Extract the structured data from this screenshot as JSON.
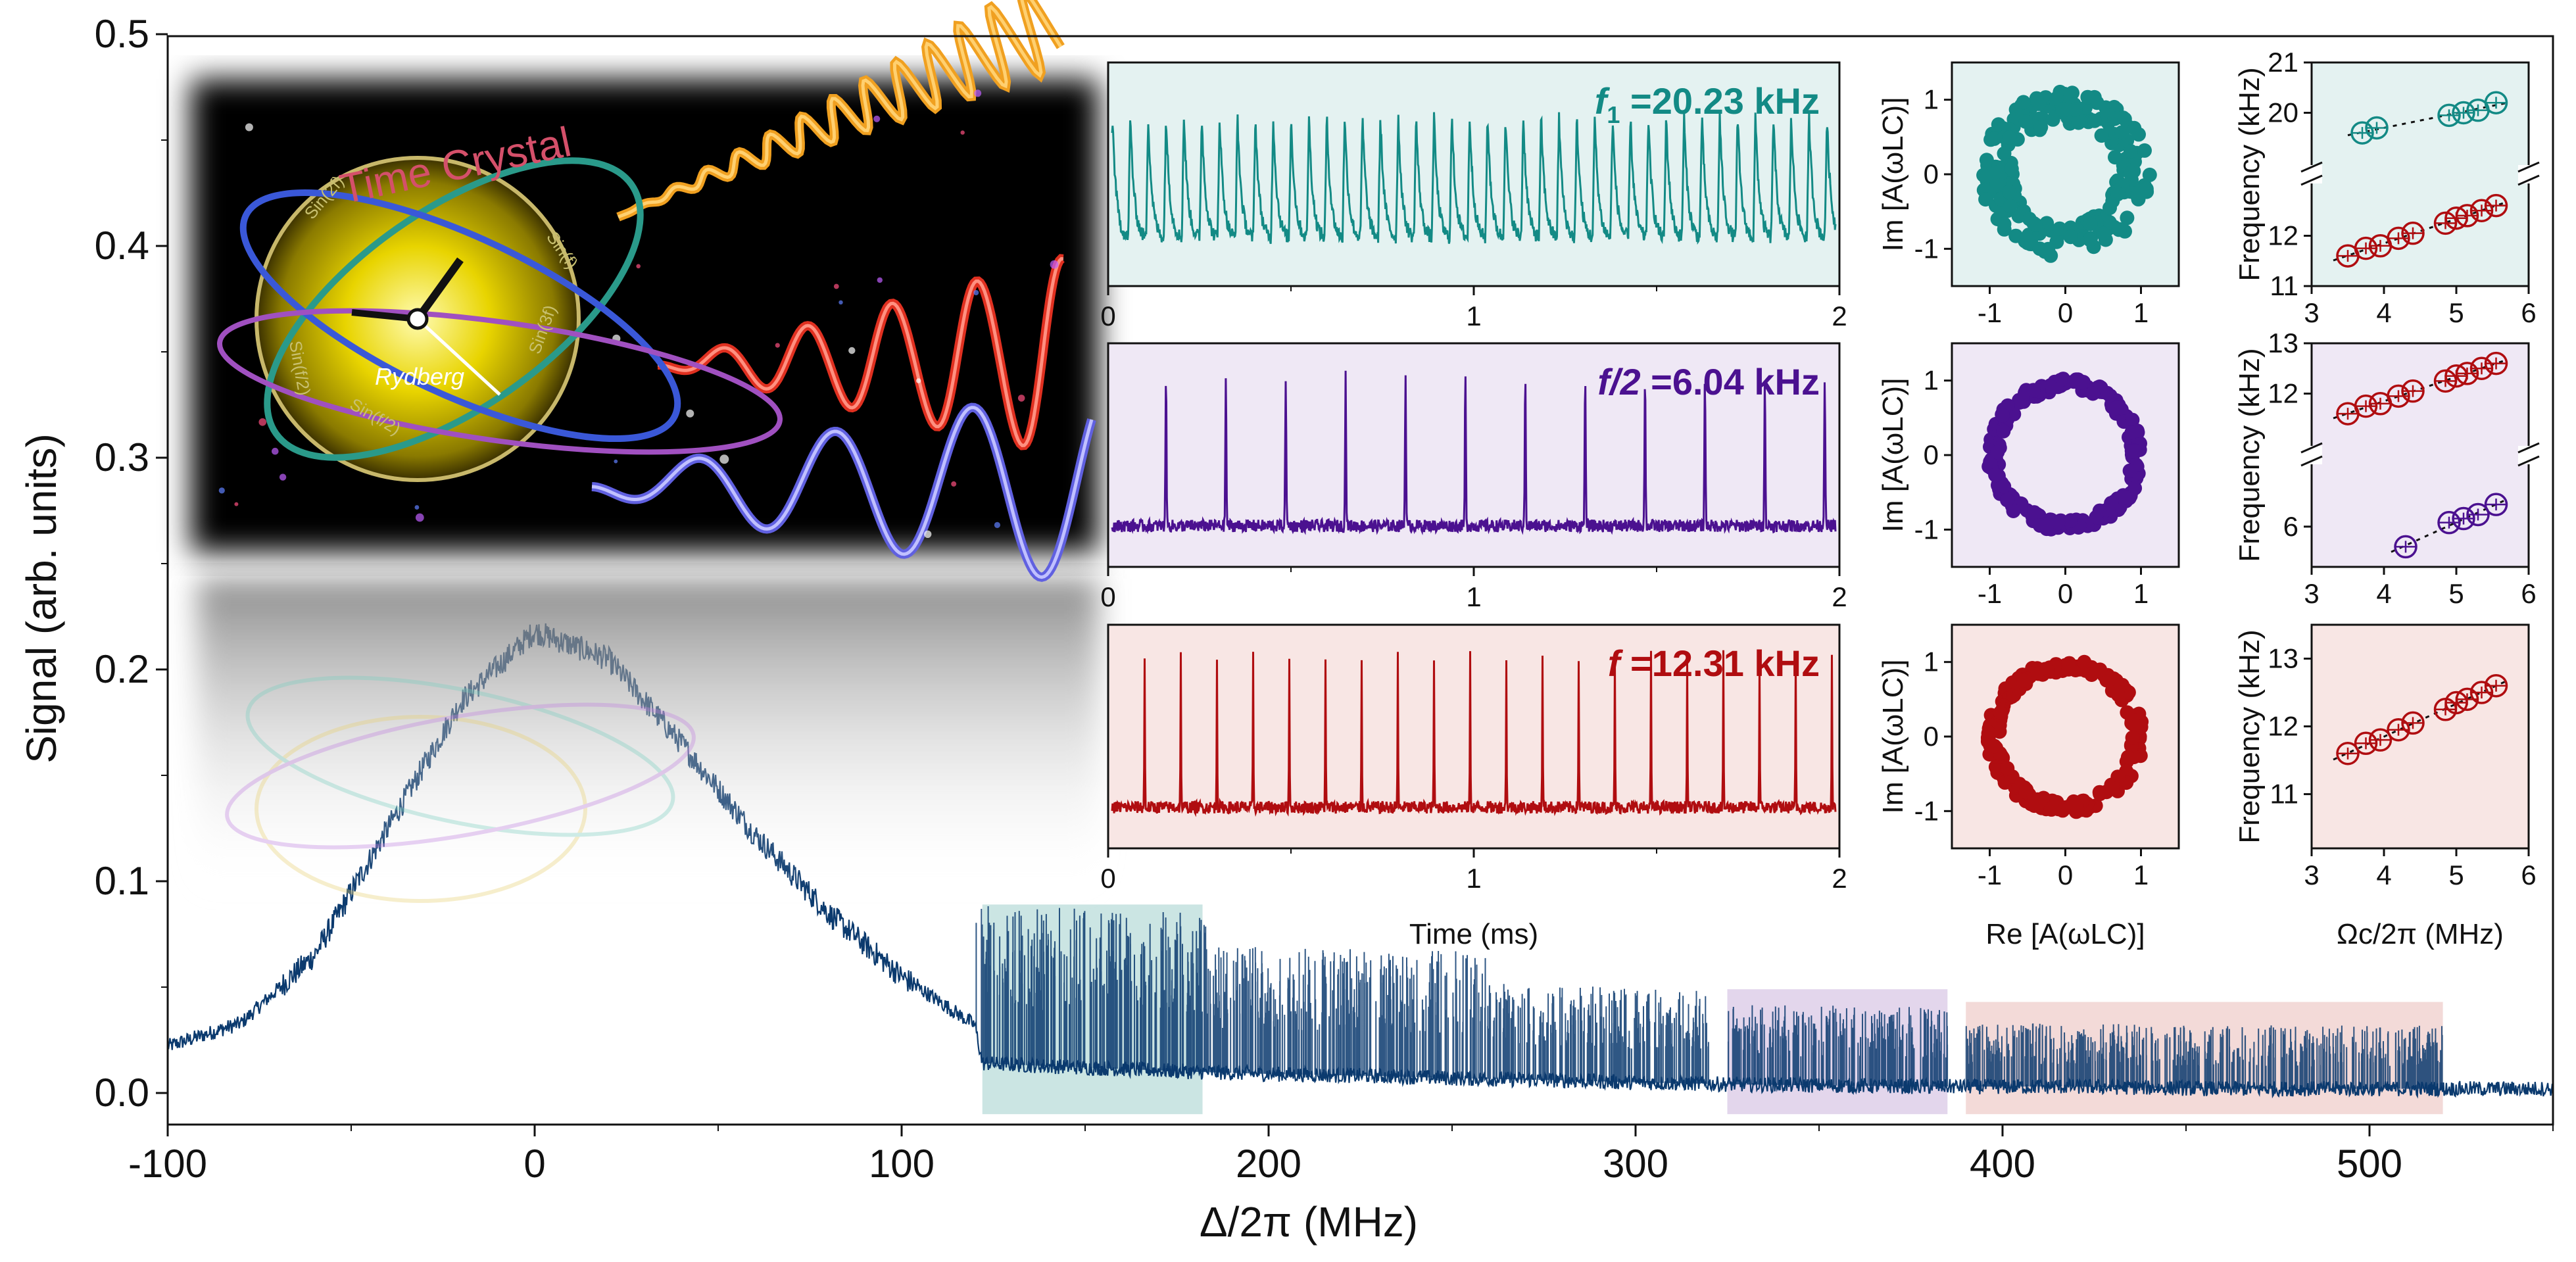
{
  "colors": {
    "main_trace": "#0b3a6e",
    "teal": "#138a85",
    "purple": "#4b1190",
    "red": "#b00d10",
    "teal_bg": "#e4f2f1",
    "purple_bg": "#efe8f5",
    "red_bg": "#f8e6e4",
    "teal_shade": "#b9dcd9",
    "purple_shade": "#d9c8e6",
    "red_shade": "#efcdcb"
  },
  "chart_data": [
    {
      "type": "line",
      "id": "main",
      "xlabel": "Δ/2π (MHz)",
      "ylabel": "Signal (arb. units)",
      "xlim": [
        -100,
        550
      ],
      "ylim": [
        -0.015,
        0.5
      ],
      "x_ticks": [
        -100,
        0,
        100,
        200,
        300,
        400,
        500
      ],
      "y_ticks": [
        0.0,
        0.1,
        0.2,
        0.3,
        0.4,
        0.5
      ],
      "x_tick_labels": [
        "-100",
        "0",
        "100",
        "200",
        "300",
        "400",
        "500"
      ],
      "y_tick_labels": [
        "0.0",
        "0.1",
        "0.2",
        "0.3",
        "0.4",
        "0.5"
      ],
      "envelope": {
        "x": [
          -100,
          -80,
          -60,
          -40,
          -20,
          0,
          20,
          40,
          60,
          80,
          100,
          120,
          122,
          150,
          180,
          200,
          230,
          250,
          280,
          300,
          330,
          380,
          420,
          460,
          500,
          520,
          550
        ],
        "y": [
          0.022,
          0.033,
          0.065,
          0.125,
          0.185,
          0.218,
          0.205,
          0.165,
          0.122,
          0.085,
          0.055,
          0.032,
          0.014,
          0.012,
          0.01,
          0.009,
          0.008,
          0.007,
          0.006,
          0.005,
          0.004,
          0.003,
          0.003,
          0.002,
          0.002,
          0.002,
          0.002
        ]
      },
      "spike_regions": [
        {
          "x": [
            120,
            183
          ],
          "max": 0.075
        },
        {
          "x": [
            183,
            260
          ],
          "max": 0.06
        },
        {
          "x": [
            260,
            320
          ],
          "max": 0.045
        },
        {
          "x": [
            325,
            385
          ],
          "max": 0.038
        },
        {
          "x": [
            390,
            520
          ],
          "max": 0.03
        }
      ],
      "highlights": [
        {
          "x": [
            122,
            182
          ],
          "y": [
            -0.01,
            0.089
          ],
          "color": "teal"
        },
        {
          "x": [
            325,
            385
          ],
          "y": [
            -0.01,
            0.049
          ],
          "color": "purple"
        },
        {
          "x": [
            390,
            520
          ],
          "y": [
            -0.01,
            0.043
          ],
          "color": "red"
        }
      ]
    },
    {
      "type": "line",
      "id": "time_trace_1",
      "xlabel": "",
      "xlim": [
        0,
        2
      ],
      "x_ticks": [
        0,
        1,
        2
      ],
      "x_tick_labels": [
        "0",
        "1",
        "2"
      ],
      "label_prefix": "f",
      "label_sub": "1",
      "label_value": " =20.23 kHz",
      "frequency_khz": 20.23,
      "shape": "sawtooth",
      "color": "teal"
    },
    {
      "type": "line",
      "id": "time_trace_2",
      "xlabel": "",
      "xlim": [
        0,
        2
      ],
      "x_ticks": [
        0,
        1,
        2
      ],
      "x_tick_labels": [
        "0",
        "1",
        "2"
      ],
      "label_prefix": "f/2",
      "label_value": " =6.04 kHz",
      "frequency_khz": 6.04,
      "shape": "spikes",
      "color": "purple"
    },
    {
      "type": "line",
      "id": "time_trace_3",
      "xlabel": "Time (ms)",
      "xlim": [
        0,
        2
      ],
      "x_ticks": [
        0,
        1,
        2
      ],
      "x_tick_labels": [
        "0",
        "1",
        "2"
      ],
      "label_prefix": "f",
      "label_value": " =12.31 kHz",
      "frequency_khz": 12.31,
      "shape": "spikes",
      "color": "red"
    },
    {
      "type": "scatter",
      "id": "phase_1",
      "ylabel": "Im [A(ωLC)]",
      "xlim": [
        -1.5,
        1.5
      ],
      "ylim": [
        -1.5,
        1.5
      ],
      "x_ticks": [
        -1,
        0,
        1
      ],
      "y_ticks": [
        -1,
        0,
        1
      ],
      "ring_radius": 0.9,
      "ring_spread": 0.22,
      "color": "teal"
    },
    {
      "type": "scatter",
      "id": "phase_2",
      "ylabel": "Im [A(ωLC)]",
      "xlim": [
        -1.5,
        1.5
      ],
      "ylim": [
        -1.5,
        1.5
      ],
      "x_ticks": [
        -1,
        0,
        1
      ],
      "y_ticks": [
        -1,
        0,
        1
      ],
      "ring_radius": 0.95,
      "ring_spread": 0.08,
      "color": "purple"
    },
    {
      "type": "scatter",
      "id": "phase_3",
      "xlabel": "Re [A(ωLC)]",
      "ylabel": "Im [A(ωLC)]",
      "xlim": [
        -1.5,
        1.5
      ],
      "ylim": [
        -1.5,
        1.5
      ],
      "x_ticks": [
        -1,
        0,
        1
      ],
      "y_ticks": [
        -1,
        0,
        1
      ],
      "ring_radius": 0.95,
      "ring_spread": 0.08,
      "color": "red"
    },
    {
      "type": "scatter",
      "id": "freq_1",
      "ylabel": "Frequency (kHz)",
      "xlim": [
        3,
        6
      ],
      "x_ticks": [
        3,
        4,
        5,
        6
      ],
      "broken_axis": true,
      "upper": {
        "ylim": [
          19,
          21
        ],
        "y_ticks": [
          20,
          21
        ],
        "series": [
          {
            "color": "teal",
            "x": [
              3.7,
              3.9,
              4.9,
              5.1,
              5.3,
              5.55
            ],
            "y": [
              19.6,
              19.7,
              19.95,
              20.0,
              20.05,
              20.2
            ]
          }
        ]
      },
      "lower": {
        "ylim": [
          11,
          13
        ],
        "y_ticks": [
          11,
          12
        ],
        "series": [
          {
            "color": "red",
            "x": [
              3.5,
              3.75,
              3.95,
              4.2,
              4.4,
              4.85,
              5.0,
              5.15,
              5.35,
              5.55
            ],
            "y": [
              11.6,
              11.75,
              11.8,
              11.95,
              12.05,
              12.25,
              12.35,
              12.4,
              12.5,
              12.6
            ]
          }
        ]
      }
    },
    {
      "type": "scatter",
      "id": "freq_2",
      "ylabel": "Frequency (kHz)",
      "xlim": [
        3,
        6
      ],
      "x_ticks": [
        3,
        4,
        5,
        6
      ],
      "broken_axis": true,
      "upper": {
        "ylim": [
          11,
          13
        ],
        "y_ticks": [
          12,
          13
        ],
        "series": [
          {
            "color": "red",
            "x": [
              3.5,
              3.75,
              3.95,
              4.2,
              4.4,
              4.85,
              5.0,
              5.15,
              5.35,
              5.55
            ],
            "y": [
              11.6,
              11.75,
              11.8,
              11.95,
              12.05,
              12.25,
              12.35,
              12.4,
              12.5,
              12.6
            ]
          }
        ]
      },
      "lower": {
        "ylim": [
          5,
          7.5
        ],
        "y_ticks": [
          6
        ],
        "series": [
          {
            "color": "purple",
            "x": [
              4.3,
              4.9,
              5.1,
              5.3,
              5.55
            ],
            "y": [
              5.5,
              6.1,
              6.2,
              6.3,
              6.55
            ]
          }
        ]
      }
    },
    {
      "type": "scatter",
      "id": "freq_3",
      "xlabel": "Ωc/2π (MHz)",
      "ylabel": "Frequency (kHz)",
      "xlim": [
        3,
        6
      ],
      "ylim": [
        10.2,
        13.5
      ],
      "x_ticks": [
        3,
        4,
        5,
        6
      ],
      "y_ticks": [
        11,
        12,
        13
      ],
      "series": [
        {
          "color": "red",
          "x": [
            3.5,
            3.75,
            3.95,
            4.2,
            4.4,
            4.85,
            5.0,
            5.15,
            5.35,
            5.55
          ],
          "y": [
            11.6,
            11.75,
            11.8,
            11.95,
            12.05,
            12.25,
            12.35,
            12.4,
            12.5,
            12.6
          ]
        }
      ]
    }
  ],
  "logo": {
    "title": "Time Crystal",
    "signature": "Rydberg",
    "ring_words": [
      "Sin(2f)",
      "Sin(f/2)",
      "Sin(f)",
      "Sin(3f)",
      "Sin(f/2)"
    ]
  }
}
